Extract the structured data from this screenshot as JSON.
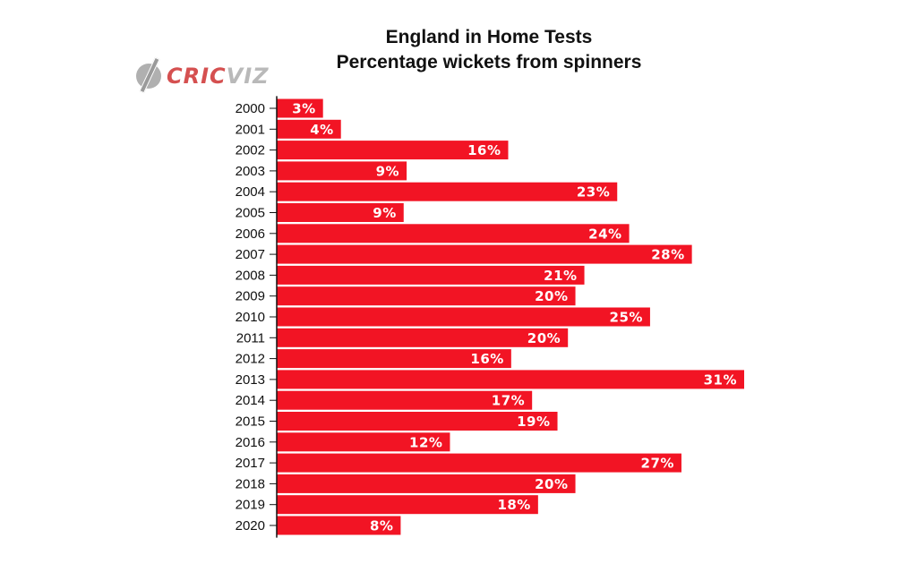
{
  "logo": {
    "text_part1": "CRIC",
    "text_part2": "VIZ"
  },
  "chart_data": {
    "type": "bar",
    "orientation": "horizontal",
    "title": "England in Home Tests",
    "subtitle": "Percentage wickets from spinners",
    "categories": [
      "2000",
      "2001",
      "2002",
      "2003",
      "2004",
      "2005",
      "2006",
      "2007",
      "2008",
      "2009",
      "2010",
      "2011",
      "2012",
      "2013",
      "2014",
      "2015",
      "2016",
      "2017",
      "2018",
      "2019",
      "2020"
    ],
    "values": [
      3.1,
      4.3,
      15.5,
      8.7,
      22.8,
      8.5,
      23.6,
      27.8,
      20.6,
      20.0,
      25.0,
      19.5,
      15.7,
      31.3,
      17.1,
      18.8,
      11.6,
      27.1,
      20.0,
      17.5,
      8.3
    ],
    "labels": [
      "3%",
      "4%",
      "16%",
      "9%",
      "23%",
      "9%",
      "24%",
      "28%",
      "21%",
      "20%",
      "25%",
      "20%",
      "16%",
      "31%",
      "17%",
      "19%",
      "12%",
      "27%",
      "20%",
      "18%",
      "8%"
    ],
    "xlim": [
      0,
      31.3
    ],
    "bar_color": "#f21424",
    "xlabel": "",
    "ylabel": "",
    "grid": false,
    "legend": "none"
  }
}
